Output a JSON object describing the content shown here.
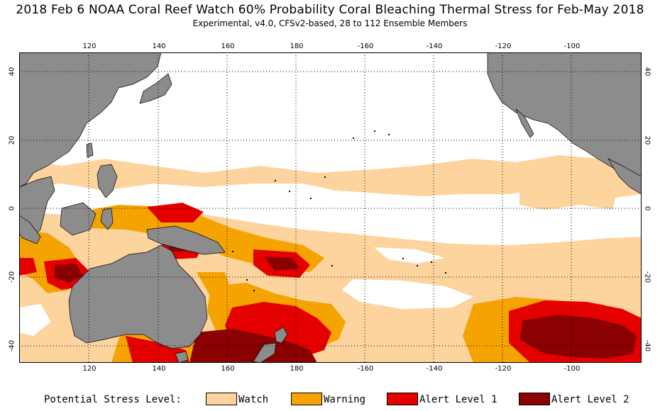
{
  "title": "2018 Feb 6 NOAA Coral Reef Watch 60% Probability Coral Bleaching Thermal Stress for Feb-May 2018",
  "subtitle": "Experimental, v4.0, CFSv2-based, 28 to 112 Ensemble Members",
  "map": {
    "region": "Western and Central Pacific",
    "lon_range": [
      100,
      280
    ],
    "lat_range": [
      -46,
      46
    ],
    "grid": "dotted",
    "top_lon_ticks": [
      "120",
      "140",
      "160",
      "180",
      "-160",
      "-140",
      "-120",
      "-100"
    ],
    "bottom_lon_ticks": [
      "120",
      "140",
      "160",
      "180",
      "-160",
      "-140",
      "-120",
      "-100"
    ],
    "left_lat_ticks": [
      "40",
      "20",
      "0",
      "-20",
      "-40"
    ],
    "right_lat_ticks": [
      "40",
      "20",
      "0",
      "-20",
      "-40"
    ],
    "land_color": "#8c8c8c",
    "ocean_color": "#ffffff"
  },
  "legend": {
    "title": "Potential Stress Level:",
    "items": [
      {
        "label": "Watch",
        "color": "#fdd49e"
      },
      {
        "label": "Warning",
        "color": "#f5a300"
      },
      {
        "label": "Alert Level 1",
        "color": "#e50000"
      },
      {
        "label": "Alert Level 2",
        "color": "#8b0000"
      }
    ]
  }
}
